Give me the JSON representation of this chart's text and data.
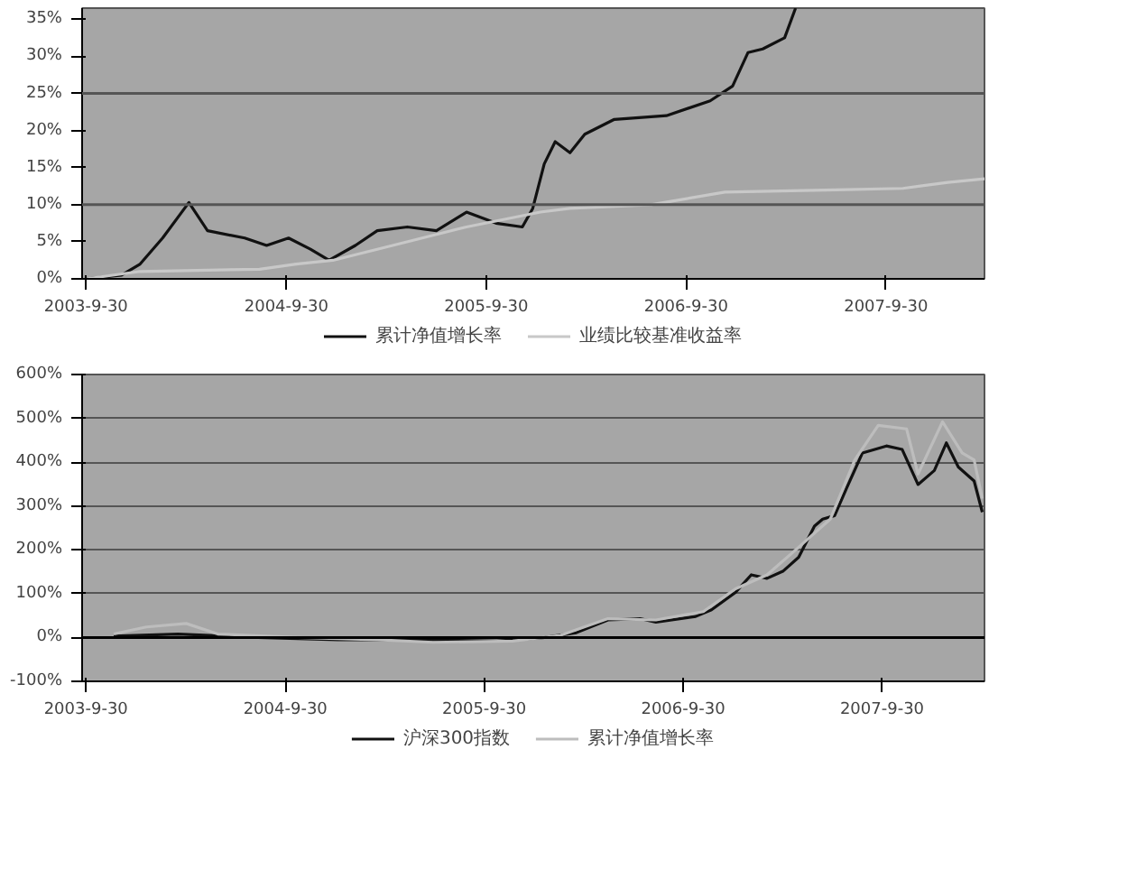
{
  "chart_data": [
    {
      "type": "line",
      "xlim": [
        "2003-09-23",
        "2008-03-28"
      ],
      "ylim": [
        0,
        36.5
      ],
      "xticks": [
        {
          "value": "2003-09-30",
          "label": "2003-9-30"
        },
        {
          "value": "2004-09-30",
          "label": "2004-9-30"
        },
        {
          "value": "2005-09-30",
          "label": "2005-9-30"
        },
        {
          "value": "2006-09-30",
          "label": "2006-9-30"
        },
        {
          "value": "2007-09-30",
          "label": "2007-9-30"
        }
      ],
      "yticks": [
        {
          "value": 0,
          "label": "0%"
        },
        {
          "value": 5,
          "label": "5%"
        },
        {
          "value": 10,
          "label": "10%"
        },
        {
          "value": 15,
          "label": "15%"
        },
        {
          "value": 20,
          "label": "20%"
        },
        {
          "value": 25,
          "label": "25%"
        },
        {
          "value": 30,
          "label": "30%"
        },
        {
          "value": 35,
          "label": "35%"
        }
      ],
      "grid": false,
      "legend": "bottom",
      "ref_lines": [
        {
          "axis": "y",
          "value": 10,
          "color": "#555555"
        },
        {
          "axis": "y",
          "value": 25,
          "color": "#555555"
        }
      ],
      "series": [
        {
          "name": "累计净值增长率",
          "color": "#111111",
          "x": [
            "2003-09-30",
            "2003-12-04",
            "2004-01-07",
            "2004-02-17",
            "2004-04-05",
            "2004-05-09",
            "2004-07-16",
            "2004-08-25",
            "2004-10-04",
            "2004-11-13",
            "2004-12-17",
            "2005-02-03",
            "2005-03-15",
            "2005-05-09",
            "2005-07-01",
            "2005-08-25",
            "2005-10-18",
            "2005-12-05",
            "2005-12-24",
            "2006-01-14",
            "2006-02-03",
            "2006-03-02",
            "2006-03-29",
            "2006-05-22",
            "2006-08-25",
            "2006-11-13",
            "2006-12-24",
            "2007-01-21",
            "2007-02-17",
            "2007-03-29",
            "2007-04-18"
          ],
          "values": [
            0,
            0.5,
            2,
            5.5,
            10.3,
            6.5,
            5.5,
            4.5,
            5.5,
            4,
            2.5,
            4.5,
            6.5,
            7,
            6.5,
            9,
            7.5,
            7,
            9.5,
            15.5,
            18.5,
            17,
            19.5,
            21.5,
            22,
            24,
            26,
            30.5,
            31,
            32.5,
            36.5
          ]
        },
        {
          "name": "业绩比较基准收益率",
          "color": "#c8c8c8",
          "x": [
            "2003-09-30",
            "2004-01-07",
            "2004-08-12",
            "2004-10-18",
            "2004-12-24",
            "2005-04-12",
            "2005-08-25",
            "2006-01-07",
            "2006-03-02",
            "2006-07-28",
            "2006-12-10",
            "2007-07-01",
            "2007-10-31",
            "2008-01-21",
            "2008-03-28"
          ],
          "values": [
            0,
            1,
            1.3,
            2,
            2.5,
            4.5,
            7,
            9,
            9.5,
            10,
            11.7,
            12,
            12.2,
            13,
            13.5
          ]
        }
      ]
    },
    {
      "type": "line",
      "xlim": [
        "2003-09-23",
        "2008-04-05"
      ],
      "ylim": [
        -100,
        600
      ],
      "xticks": [
        {
          "value": "2003-09-30",
          "label": "2003-9-30"
        },
        {
          "value": "2004-09-30",
          "label": "2004-9-30"
        },
        {
          "value": "2005-09-30",
          "label": "2005-9-30"
        },
        {
          "value": "2006-09-30",
          "label": "2006-9-30"
        },
        {
          "value": "2007-09-30",
          "label": "2007-9-30"
        }
      ],
      "yticks": [
        {
          "value": -100,
          "label": "-100%"
        },
        {
          "value": 0,
          "label": "0%"
        },
        {
          "value": 100,
          "label": "100%"
        },
        {
          "value": 200,
          "label": "200%"
        },
        {
          "value": 300,
          "label": "300%"
        },
        {
          "value": 400,
          "label": "400%"
        },
        {
          "value": 500,
          "label": "500%"
        },
        {
          "value": 600,
          "label": "600%"
        }
      ],
      "grid": "y",
      "legend": "bottom",
      "ref_lines": [
        {
          "axis": "y",
          "value": 0,
          "color": "#000000"
        }
      ],
      "series": [
        {
          "name": "沪深300指数",
          "color": "#111111",
          "x": [
            "2003-11-20",
            "2004-03-17",
            "2004-08-11",
            "2005-01-04",
            "2005-05-30",
            "2005-10-23",
            "2006-01-19",
            "2006-03-18",
            "2006-05-15",
            "2006-07-13",
            "2006-08-11",
            "2006-10-23",
            "2006-11-21",
            "2007-01-04",
            "2007-02-02",
            "2007-03-03",
            "2007-04-01",
            "2007-04-30",
            "2007-05-29",
            "2007-06-13",
            "2007-07-05",
            "2007-07-27",
            "2007-08-25",
            "2007-10-08",
            "2007-11-06",
            "2007-12-05",
            "2008-01-04",
            "2008-01-26",
            "2008-02-17",
            "2008-03-17",
            "2008-04-01"
          ],
          "values": [
            3,
            8,
            0,
            -5,
            -5,
            -8,
            0,
            11,
            40,
            43,
            35,
            48,
            63,
            103,
            143,
            135,
            151,
            183,
            254,
            270,
            278,
            341,
            421,
            437,
            429,
            349,
            381,
            444,
            389,
            357,
            286
          ]
        },
        {
          "name": "累计净值增长率",
          "color": "#bdbdbd",
          "x": [
            "2003-11-20",
            "2004-01-19",
            "2004-04-01",
            "2004-05-29",
            "2004-10-23",
            "2005-03-18",
            "2005-06-28",
            "2005-11-21",
            "2006-02-17",
            "2006-05-15",
            "2006-08-11",
            "2006-11-06",
            "2007-01-04",
            "2007-03-03",
            "2007-04-30",
            "2007-06-27",
            "2007-08-11",
            "2007-09-23",
            "2007-11-14",
            "2007-12-05",
            "2008-01-19",
            "2008-02-24",
            "2008-03-17",
            "2008-04-01"
          ],
          "values": [
            8,
            24,
            32,
            8,
            0,
            -5,
            -11,
            -8,
            5,
            43,
            40,
            59,
            111,
            143,
            206,
            270,
            405,
            484,
            476,
            373,
            492,
            421,
            405,
            317
          ]
        }
      ]
    }
  ]
}
